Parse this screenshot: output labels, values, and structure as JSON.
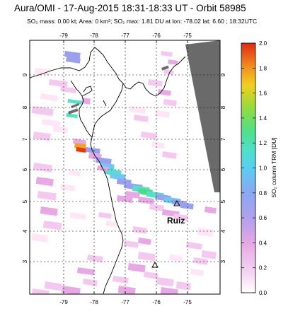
{
  "header": {
    "title": "Aura/OMI - 17-Aug-2015 18:31-18:33 UT - Orbit 58985",
    "subtitle": "SO₂ mass: 0.00 kt; Area: 0 km²; SO₂ max: 1.81 DU at lon: -78.02 lat: 6.60 ; 18:32UTC"
  },
  "map": {
    "lon_top_ticks": [
      "-79",
      "-78",
      "-77",
      "-76",
      "-75"
    ],
    "lon_bottom_ticks": [
      "-79",
      "-78",
      "-77",
      "-76",
      "-75"
    ],
    "lat_left_ticks": [
      "9",
      "8",
      "7",
      "6",
      "5",
      "4",
      "3"
    ],
    "lat_right_ticks": [
      "9",
      "8",
      "7",
      "6",
      "5",
      "4",
      "3"
    ],
    "volcanoes": [
      {
        "name": "Ruiz",
        "lon": -75.32,
        "lat": 4.9,
        "labeled": true
      },
      {
        "name": "",
        "lon": -76.0,
        "lat": 2.9,
        "labeled": false
      }
    ],
    "pixel_colors": [
      "#ffe6f7",
      "#f5c8f0",
      "#e8a8e6",
      "#9aa0f0",
      "#6fc8ef",
      "#55e0c8",
      "#48dc86",
      "#f4a020",
      "#e03c10"
    ],
    "land_color": "#ffffff",
    "swath_gap_color": "#6a6a6a"
  },
  "colorbar": {
    "title": "SO₂ column TRM [DU]",
    "ticks": [
      "2.0",
      "1.8",
      "1.6",
      "1.4",
      "1.2",
      "1.0",
      "0.8",
      "0.6",
      "0.4",
      "0.2",
      "0.0"
    ],
    "min": 0.0,
    "max": 2.0,
    "colors": [
      "#ffffff",
      "#f6d8f4",
      "#e4a8e4",
      "#c6a4ea",
      "#9c9cf0",
      "#78b4f4",
      "#5ad2ee",
      "#4ce2c8",
      "#4ee08a",
      "#74dc4c",
      "#b8d82c",
      "#f0d020",
      "#f0a020",
      "#ec6a1c",
      "#e02a14"
    ]
  }
}
